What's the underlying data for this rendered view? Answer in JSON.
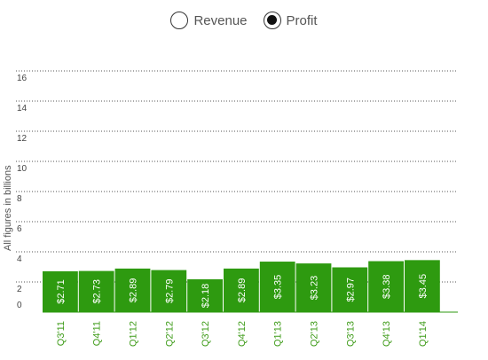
{
  "toggle": {
    "options": [
      {
        "label": "Revenue",
        "selected": false
      },
      {
        "label": "Profit",
        "selected": true
      }
    ]
  },
  "chart_data": {
    "type": "bar",
    "ylabel": "All figures in billions",
    "ylim": [
      0,
      16
    ],
    "yticks": [
      0,
      2,
      4,
      6,
      8,
      10,
      12,
      14,
      16
    ],
    "grid": true,
    "bar_color": "#2e9a10",
    "label_color": "#3f9c1a",
    "categories": [
      "Q3'11",
      "Q4'11",
      "Q1'12",
      "Q2'12",
      "Q3'12",
      "Q4'12",
      "Q1'13",
      "Q2'13",
      "Q3'13",
      "Q4'13",
      "Q1'14"
    ],
    "values": [
      2.71,
      2.73,
      2.89,
      2.79,
      2.18,
      2.89,
      3.35,
      3.23,
      2.97,
      3.38,
      3.45
    ],
    "value_labels": [
      "$2.71",
      "$2.73",
      "$2.89",
      "$2.79",
      "$2.18",
      "$2.89",
      "$3.35",
      "$3.23",
      "$2.97",
      "$3.38",
      "$3.45"
    ]
  }
}
